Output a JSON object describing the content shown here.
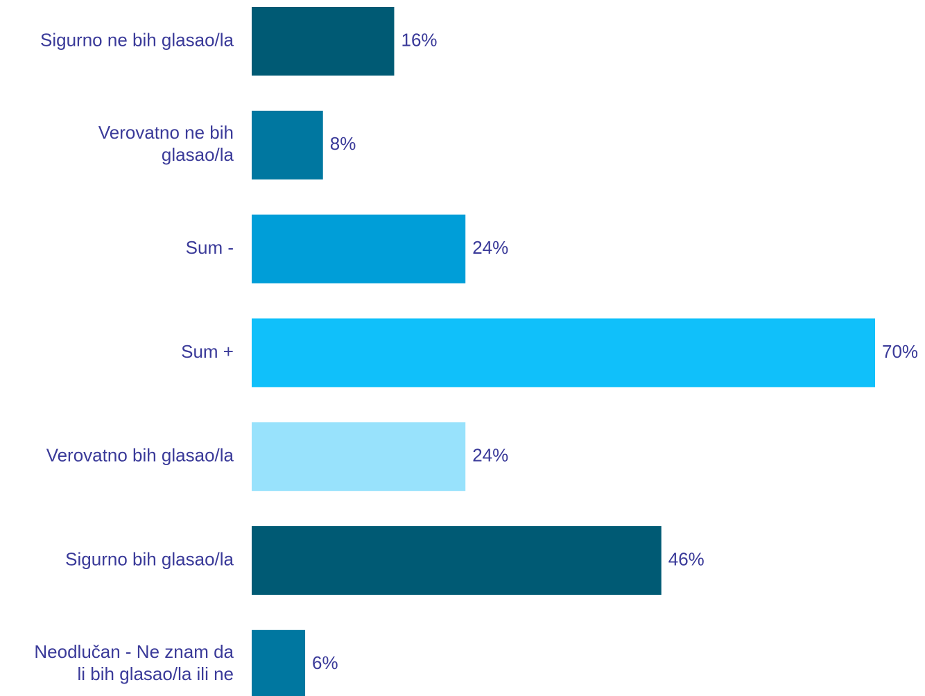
{
  "chart_data": {
    "type": "bar",
    "orientation": "horizontal",
    "categories": [
      [
        "Sigurno ne bih glasao/la"
      ],
      [
        "Verovatno ne bih",
        "glasao/la"
      ],
      [
        "Sum -"
      ],
      [
        "Sum +"
      ],
      [
        "Verovatno bih glasao/la"
      ],
      [
        "Sigurno bih glasao/la"
      ],
      [
        "Neodlučan - Ne znam da",
        "li bih glasao/la ili ne"
      ]
    ],
    "values": [
      16,
      8,
      24,
      70,
      24,
      46,
      6
    ],
    "value_labels": [
      "16%",
      "8%",
      "24%",
      "70%",
      "24%",
      "46%",
      "6%"
    ],
    "bar_colors": [
      "#005a74",
      "#0077a0",
      "#009ed8",
      "#10c0fa",
      "#98e2fc",
      "#005a74",
      "#0077a0"
    ],
    "xlim": [
      0,
      70
    ],
    "grid": false,
    "legend": "none"
  },
  "colors": {
    "text": "#3a3a99",
    "background": "#ffffff"
  }
}
